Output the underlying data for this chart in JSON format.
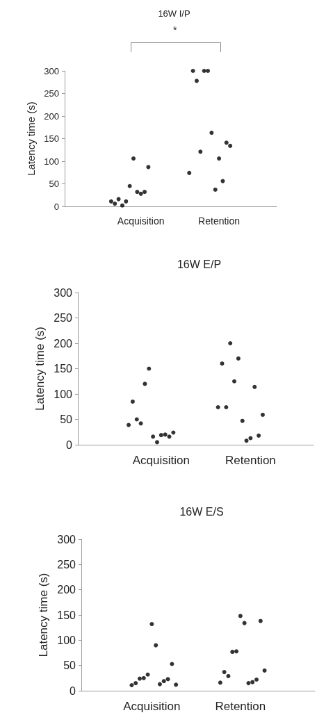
{
  "chart_data": [
    {
      "type": "scatter",
      "title": "16W I/P",
      "ylabel": "Latency time (s)",
      "annotations": [
        "*"
      ],
      "marker": "circle",
      "grid": false,
      "categories": [
        null,
        null,
        null,
        null,
        null,
        null,
        null,
        null,
        null,
        null,
        null,
        null,
        null,
        null,
        null,
        null,
        null,
        null,
        null,
        null,
        "Acquisition",
        null,
        null,
        null,
        null,
        null,
        null,
        null,
        null,
        null,
        null,
        null,
        null,
        null,
        null,
        null,
        null,
        null,
        null,
        null,
        null,
        "Retention",
        null,
        null,
        null,
        null,
        null,
        null,
        null,
        null,
        null,
        null,
        null,
        null,
        null,
        null,
        null
      ],
      "ylim": [
        0,
        300
      ],
      "yticks": [
        0,
        50,
        100,
        150,
        200,
        250,
        300
      ],
      "series": [
        {
          "color": "#000000",
          "values": [
            null,
            null,
            null,
            null,
            null,
            null,
            null,
            null,
            null,
            null,
            null,
            null,
            11,
            6,
            16,
            2,
            11,
            45,
            106,
            32,
            28,
            32,
            87,
            null,
            null,
            null,
            null,
            null,
            null,
            null,
            null,
            null,
            null,
            74,
            300,
            278,
            121,
            300,
            300,
            163,
            37,
            106,
            56,
            141,
            134,
            null,
            null,
            null,
            null,
            null,
            null,
            null,
            null,
            null,
            null,
            null,
            null
          ]
        }
      ]
    },
    {
      "type": "scatter",
      "title": "16W E/P",
      "ylabel": "Latency time (s)",
      "marker": "circle",
      "grid": false,
      "categories": [
        null,
        null,
        null,
        null,
        null,
        null,
        null,
        null,
        null,
        null,
        null,
        null,
        null,
        null,
        null,
        null,
        null,
        null,
        null,
        null,
        "Acquisition",
        null,
        null,
        null,
        null,
        null,
        null,
        null,
        null,
        null,
        null,
        null,
        null,
        null,
        null,
        null,
        null,
        null,
        null,
        null,
        null,
        null,
        "Retention",
        null,
        null,
        null,
        null,
        null,
        null,
        null,
        null,
        null,
        null,
        null,
        null,
        null,
        null,
        null
      ],
      "ylim": [
        0,
        300
      ],
      "yticks": [
        0,
        50,
        100,
        150,
        200,
        250,
        300
      ],
      "series": [
        {
          "color": "#000000",
          "values": [
            null,
            null,
            null,
            null,
            null,
            null,
            null,
            null,
            null,
            null,
            null,
            null,
            39,
            85,
            50,
            42,
            120,
            150,
            16,
            5,
            19,
            20,
            16,
            24,
            null,
            null,
            null,
            null,
            null,
            null,
            null,
            null,
            null,
            null,
            74,
            160,
            74,
            200,
            125,
            170,
            47,
            8,
            13,
            114,
            18,
            59,
            null,
            null,
            null,
            null,
            null,
            null,
            null,
            null,
            null,
            null,
            null,
            null
          ]
        }
      ]
    },
    {
      "type": "scatter",
      "title": "16W E/S",
      "ylabel": "Latency time (s)",
      "marker": "circle",
      "grid": false,
      "categories": [
        null,
        null,
        null,
        null,
        null,
        null,
        null,
        null,
        null,
        null,
        null,
        null,
        null,
        null,
        null,
        null,
        null,
        "Acquisition",
        null,
        null,
        null,
        null,
        null,
        null,
        null,
        null,
        null,
        null,
        null,
        null,
        null,
        null,
        null,
        null,
        null,
        null,
        null,
        null,
        null,
        "Retention",
        null,
        null,
        null,
        null,
        null,
        null,
        null,
        null,
        null,
        null,
        null,
        null,
        null,
        null,
        null,
        null,
        null,
        null
      ],
      "ylim": [
        0,
        300
      ],
      "yticks": [
        0,
        50,
        100,
        150,
        200,
        250,
        300
      ],
      "series": [
        {
          "color": "#000000",
          "values": [
            null,
            null,
            null,
            null,
            null,
            null,
            null,
            null,
            null,
            null,
            null,
            null,
            11,
            15,
            24,
            25,
            32,
            132,
            90,
            13,
            19,
            23,
            53,
            12,
            null,
            null,
            null,
            null,
            null,
            null,
            null,
            null,
            null,
            null,
            16,
            37,
            29,
            77,
            78,
            148,
            134,
            15,
            17,
            22,
            138,
            40,
            null,
            null,
            null,
            null,
            null,
            null,
            null,
            null,
            null,
            null,
            null,
            null
          ]
        }
      ]
    }
  ]
}
